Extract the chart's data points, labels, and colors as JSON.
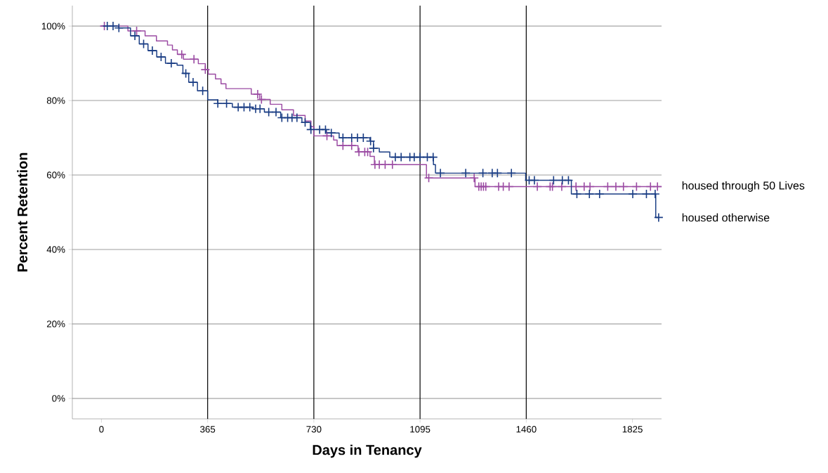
{
  "chart_data": {
    "type": "step",
    "xlabel": "Days in Tenancy",
    "ylabel": "Percent Retention",
    "xlim": [
      -100,
      1925
    ],
    "ylim": [
      -5.5,
      105.5
    ],
    "xticks": [
      0,
      365,
      730,
      1095,
      1460,
      1825
    ],
    "yticks": [
      {
        "value": 0,
        "label": "0%"
      },
      {
        "value": 20,
        "label": "20%"
      },
      {
        "value": 40,
        "label": "40%"
      },
      {
        "value": 60,
        "label": "60%"
      },
      {
        "value": 80,
        "label": "80%"
      },
      {
        "value": 100,
        "label": "100%"
      }
    ],
    "grid": "y",
    "legend": false,
    "ref_lines": [
      {
        "axis": "x",
        "value": 365,
        "color": "#000000"
      },
      {
        "axis": "x",
        "value": 730,
        "color": "#000000"
      },
      {
        "axis": "x",
        "value": 1095,
        "color": "#000000"
      },
      {
        "axis": "x",
        "value": 1460,
        "color": "#000000"
      }
    ],
    "series": [
      {
        "name": "housed through 50 Lives",
        "color": "#9b4ba3",
        "x": [
          0,
          91,
          150,
          189,
          227,
          244,
          261,
          282,
          333,
          357,
          367,
          392,
          411,
          428,
          515,
          544,
          580,
          620,
          660,
          700,
          720,
          730,
          798,
          810,
          882,
          923,
          938,
          1117,
          1284,
          1925
        ],
        "values": [
          100,
          98.7,
          97.4,
          96.0,
          94.9,
          93.6,
          92.4,
          91.1,
          89.9,
          88.3,
          87.1,
          85.8,
          84.5,
          83.2,
          81.7,
          80.3,
          79,
          77.5,
          76,
          74.5,
          73,
          70.5,
          69.4,
          67.9,
          66.2,
          65.0,
          62.8,
          59.2,
          56.9,
          56.9
        ]
      },
      {
        "name": "housed otherwise",
        "color": "#1a3d84",
        "x": [
          0,
          60,
          100,
          130,
          160,
          190,
          220,
          260,
          280,
          300,
          330,
          365,
          400,
          450,
          520,
          560,
          616,
          689,
          718,
          773,
          817,
          923,
          935,
          955,
          991,
          1141,
          1148,
          1458,
          1615,
          1905,
          1915
        ],
        "values": [
          100,
          99.5,
          97.4,
          95.2,
          93.4,
          91.7,
          90,
          89.5,
          87.3,
          84.9,
          82.6,
          80.2,
          79.2,
          78.2,
          77.8,
          76.9,
          75.4,
          74.1,
          72.2,
          71.3,
          70.0,
          69.1,
          67.2,
          66.2,
          64.8,
          62.8,
          60.5,
          58.6,
          54.9,
          48.6,
          48.6
        ]
      },
      {
        "type": "scatter",
        "marker": "cross",
        "color": "#9b4ba3",
        "x": [
          10,
          121,
          276,
          318,
          357,
          537,
          550,
          775,
          830,
          860,
          885,
          905,
          915,
          940,
          955,
          975,
          1000,
          1125,
          1281,
          1297,
          1305,
          1313,
          1321,
          1365,
          1381,
          1401,
          1498,
          1542,
          1550,
          1582,
          1631,
          1659,
          1679,
          1740,
          1768,
          1794,
          1839,
          1887,
          1911
        ],
        "values": [
          100,
          98.7,
          92.4,
          91.1,
          88.3,
          81.7,
          80.3,
          70.5,
          67.9,
          67.9,
          66.2,
          66.2,
          66.2,
          62.8,
          62.8,
          62.8,
          62.8,
          59.2,
          59.2,
          56.9,
          56.9,
          56.9,
          56.9,
          56.9,
          56.9,
          56.9,
          56.9,
          56.9,
          56.9,
          56.9,
          56.9,
          56.9,
          56.9,
          56.9,
          56.9,
          56.9,
          56.9,
          56.9,
          56.9
        ]
      },
      {
        "type": "scatter",
        "marker": "cross",
        "color": "#1a3d84",
        "x": [
          20,
          40,
          60,
          115,
          145,
          175,
          205,
          240,
          290,
          315,
          348,
          400,
          430,
          470,
          490,
          510,
          530,
          545,
          575,
          600,
          620,
          640,
          655,
          672,
          700,
          720,
          750,
          770,
          790,
          830,
          860,
          880,
          900,
          925,
          935,
          1010,
          1030,
          1060,
          1075,
          1095,
          1120,
          1140,
          1165,
          1252,
          1311,
          1343,
          1361,
          1409,
          1470,
          1488,
          1554,
          1584,
          1605,
          1634,
          1677,
          1712,
          1826,
          1873,
          1903,
          1915
        ],
        "values": [
          100,
          100,
          99.5,
          97.4,
          95.2,
          93.4,
          91.7,
          90,
          87.3,
          84.9,
          82.6,
          79.2,
          79.2,
          78.2,
          78.2,
          78.2,
          77.8,
          77.8,
          76.9,
          76.9,
          75.4,
          75.4,
          75.4,
          75.4,
          74.1,
          72.2,
          72.2,
          72.2,
          71.3,
          70.0,
          70.0,
          70.0,
          70.0,
          69.1,
          67.2,
          64.8,
          64.8,
          64.8,
          64.8,
          64.8,
          64.8,
          64.8,
          60.5,
          60.5,
          60.5,
          60.5,
          60.5,
          60.5,
          58.6,
          58.6,
          58.6,
          58.6,
          58.6,
          54.9,
          54.9,
          54.9,
          54.9,
          54.9,
          54.9,
          48.6
        ]
      }
    ]
  }
}
